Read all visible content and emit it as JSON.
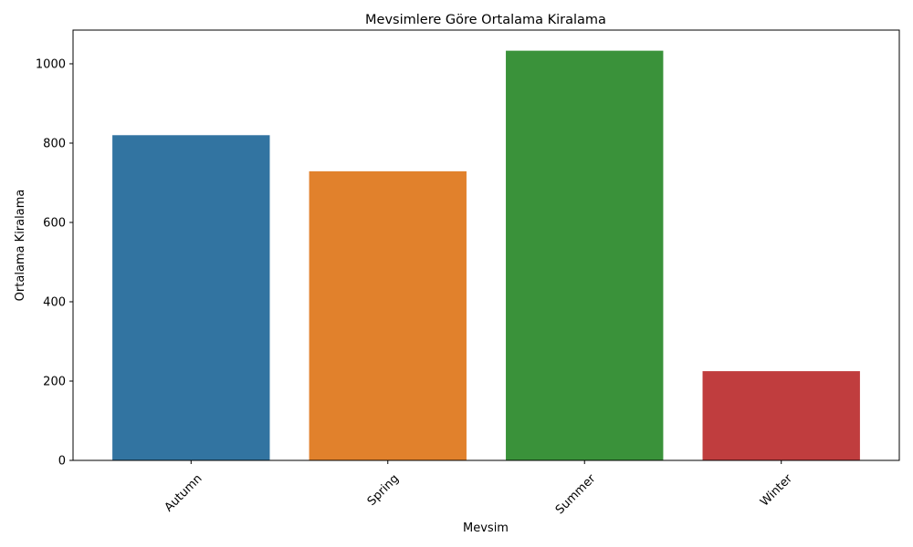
{
  "chart_data": {
    "type": "bar",
    "title": "Mevsimlere Göre Ortalama Kiralama",
    "xlabel": "Mevsim",
    "ylabel": "Ortalama Kiralama",
    "categories": [
      "Autumn",
      "Spring",
      "Summer",
      "Winter"
    ],
    "values": [
      820,
      729,
      1033,
      225
    ],
    "colors": [
      "#3274a1",
      "#e1812c",
      "#3a923a",
      "#c03d3e"
    ],
    "ylim": [
      0,
      1085
    ],
    "yticks": [
      0,
      200,
      400,
      600,
      800,
      1000
    ],
    "xtick_rotation": 45,
    "grid": false,
    "legend": false
  }
}
